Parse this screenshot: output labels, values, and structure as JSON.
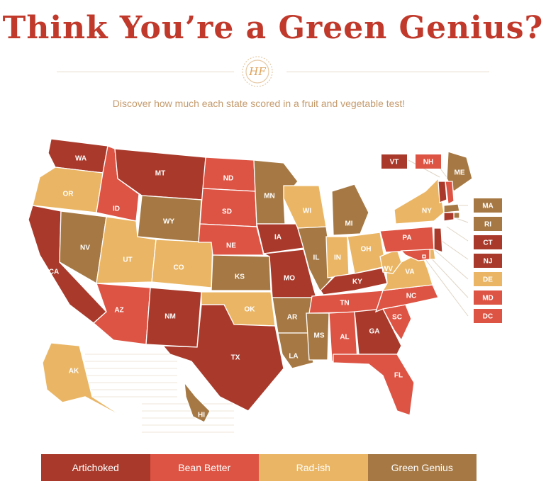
{
  "title": "Think You’re a Green Genius?",
  "subtitle": "Discover how much each state scored in a fruit and vegetable test!",
  "logo_text": "HF",
  "colors": {
    "artichoked": "#a93a2b",
    "bean_better": "#dd5444",
    "rad_ish": "#eab665",
    "green_genius": "#a67944",
    "line": "#e0d5c6"
  },
  "legend": [
    {
      "label": "Artichoked",
      "category": "artichoked"
    },
    {
      "label": "Bean Better",
      "category": "bean_better"
    },
    {
      "label": "Rad-ish",
      "category": "rad_ish"
    },
    {
      "label": "Green Genius",
      "category": "green_genius"
    }
  ],
  "states": [
    {
      "code": "WA",
      "category": "artichoked"
    },
    {
      "code": "OR",
      "category": "rad_ish"
    },
    {
      "code": "CA",
      "category": "artichoked"
    },
    {
      "code": "NV",
      "category": "green_genius"
    },
    {
      "code": "ID",
      "category": "bean_better"
    },
    {
      "code": "MT",
      "category": "artichoked"
    },
    {
      "code": "WY",
      "category": "green_genius"
    },
    {
      "code": "UT",
      "category": "rad_ish"
    },
    {
      "code": "CO",
      "category": "rad_ish"
    },
    {
      "code": "AZ",
      "category": "bean_better"
    },
    {
      "code": "NM",
      "category": "artichoked"
    },
    {
      "code": "ND",
      "category": "bean_better"
    },
    {
      "code": "SD",
      "category": "bean_better"
    },
    {
      "code": "NE",
      "category": "bean_better"
    },
    {
      "code": "KS",
      "category": "green_genius"
    },
    {
      "code": "OK",
      "category": "rad_ish"
    },
    {
      "code": "TX",
      "category": "artichoked"
    },
    {
      "code": "MN",
      "category": "green_genius"
    },
    {
      "code": "IA",
      "category": "artichoked"
    },
    {
      "code": "MO",
      "category": "artichoked"
    },
    {
      "code": "AR",
      "category": "green_genius"
    },
    {
      "code": "LA",
      "category": "green_genius"
    },
    {
      "code": "WI",
      "category": "rad_ish"
    },
    {
      "code": "IL",
      "category": "green_genius"
    },
    {
      "code": "MI",
      "category": "green_genius"
    },
    {
      "code": "IN",
      "category": "rad_ish"
    },
    {
      "code": "OH",
      "category": "rad_ish"
    },
    {
      "code": "KY",
      "category": "artichoked"
    },
    {
      "code": "TN",
      "category": "bean_better"
    },
    {
      "code": "MS",
      "category": "green_genius"
    },
    {
      "code": "AL",
      "category": "bean_better"
    },
    {
      "code": "GA",
      "category": "artichoked"
    },
    {
      "code": "FL",
      "category": "bean_better"
    },
    {
      "code": "SC",
      "category": "bean_better"
    },
    {
      "code": "NC",
      "category": "bean_better"
    },
    {
      "code": "VA",
      "category": "rad_ish"
    },
    {
      "code": "WV",
      "category": "rad_ish"
    },
    {
      "code": "PA",
      "category": "bean_better"
    },
    {
      "code": "NY",
      "category": "rad_ish"
    },
    {
      "code": "ME",
      "category": "green_genius"
    },
    {
      "code": "AK",
      "category": "rad_ish"
    },
    {
      "code": "HI",
      "category": "green_genius"
    },
    {
      "code": "VT",
      "category": "artichoked"
    },
    {
      "code": "NH",
      "category": "bean_better"
    },
    {
      "code": "MA",
      "category": "green_genius"
    },
    {
      "code": "RI",
      "category": "green_genius"
    },
    {
      "code": "CT",
      "category": "artichoked"
    },
    {
      "code": "NJ",
      "category": "artichoked"
    },
    {
      "code": "DE",
      "category": "rad_ish"
    },
    {
      "code": "MD",
      "category": "bean_better"
    },
    {
      "code": "DC",
      "category": "bean_better"
    }
  ]
}
